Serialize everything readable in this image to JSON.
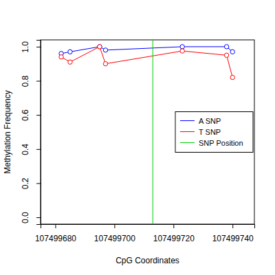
{
  "chart_data": {
    "type": "line",
    "x_label": "CpG Coordinates",
    "y_label": "Methylation Frequency",
    "x": [
      107499682,
      107499685,
      107499695,
      107499697,
      107499723,
      107499738,
      107499740
    ],
    "series": [
      {
        "name": "A SNP",
        "color": "#0000ff",
        "marker": "circle-open",
        "line_style": "solid",
        "values": [
          0.96,
          0.97,
          1.0,
          0.98,
          1.0,
          1.0,
          0.97
        ]
      },
      {
        "name": "T SNP",
        "color": "#ff0000",
        "marker": "circle-open",
        "line_style": "solid",
        "values": [
          0.94,
          0.91,
          1.0,
          0.9,
          0.975,
          0.95,
          0.82
        ]
      },
      {
        "name": "SNP Position",
        "color": "#00cd00",
        "type": "vline",
        "line_style": "solid",
        "x": [
          107499713
        ]
      }
    ],
    "xlim": [
      107499675,
      107499747.4
    ],
    "xticks": [
      107499680,
      107499700,
      107499720,
      107499740
    ],
    "ylim": [
      -0.04,
      1.04
    ],
    "yticks": [
      {
        "value": 0,
        "label": "0.0"
      },
      0.2,
      0.4,
      0.6,
      0.8,
      {
        "value": 1,
        "label": "1.0"
      }
    ],
    "legend": "right",
    "grid": false
  }
}
